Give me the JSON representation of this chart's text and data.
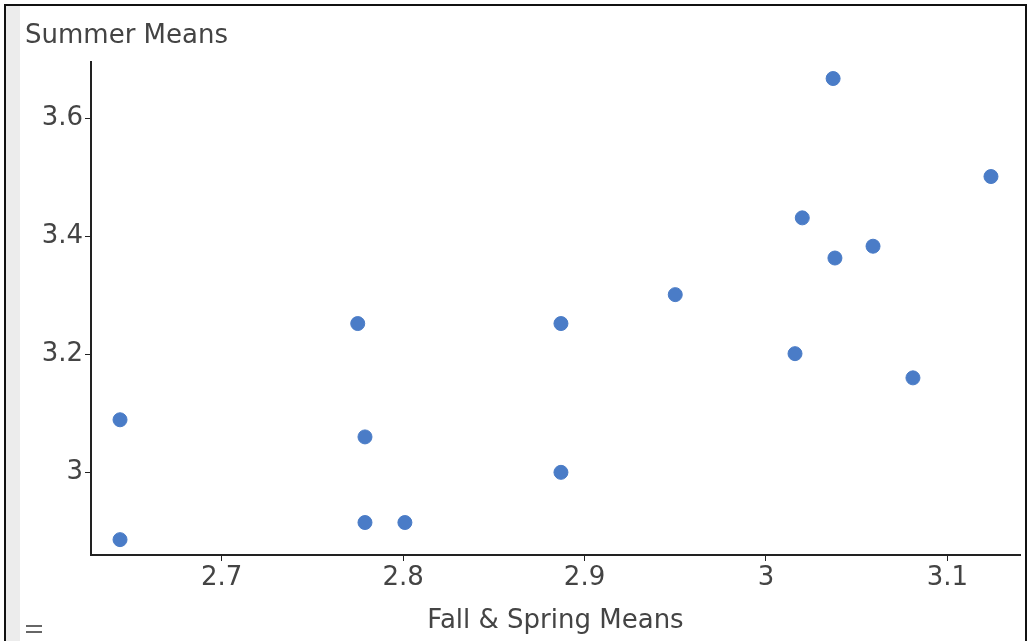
{
  "chart_data": {
    "type": "scatter",
    "xlabel": "Fall & Spring Means",
    "ylabel": "Summer Means",
    "x": [
      2.644,
      2.644,
      2.775,
      2.779,
      2.779,
      2.801,
      2.887,
      2.887,
      2.95,
      3.037,
      3.02,
      3.038,
      3.059,
      3.016,
      3.081,
      3.124
    ],
    "series": [
      {
        "color": "#4a7cc7",
        "values": [
          3.089,
          2.886,
          3.252,
          3.06,
          2.915,
          2.915,
          3.252,
          3.0,
          3.301,
          3.667,
          3.431,
          3.363,
          3.383,
          3.201,
          3.16,
          3.501
        ]
      }
    ],
    "xlim": [
      2.628,
      3.14
    ],
    "xticks": [
      {
        "value": 2.7,
        "label": "2.7"
      },
      {
        "value": 2.8,
        "label": "2.8"
      },
      {
        "value": 2.9,
        "label": "2.9"
      },
      3,
      {
        "value": 3.1,
        "label": "3.1"
      }
    ],
    "ylim": [
      2.86,
      3.695
    ],
    "yticks": [
      3,
      {
        "value": 3.2,
        "label": "3.2"
      },
      {
        "value": 3.4,
        "label": "3.4"
      },
      {
        "value": 3.6,
        "label": "3.6"
      }
    ],
    "grid": false,
    "legend": false,
    "marker": "circle"
  }
}
